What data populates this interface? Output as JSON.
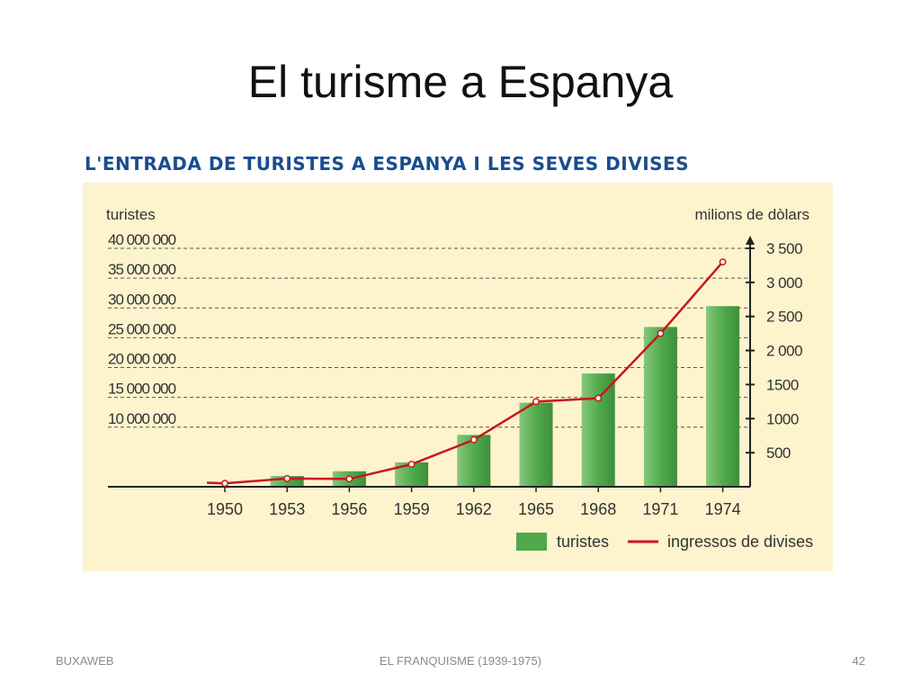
{
  "slide": {
    "title": "El turisme a Espanya",
    "footer_left": "BUXAWEB",
    "footer_center": "EL FRANQUISME (1939-1975)",
    "footer_right": "42"
  },
  "chart_data": {
    "type": "bar",
    "title": "L'ENTRADA DE TURISTES A ESPANYA I LES SEVES DIVISES",
    "ylabel_left": "turistes",
    "ylabel_right": "milions de dòlars",
    "categories": [
      "1950",
      "1953",
      "1956",
      "1959",
      "1962",
      "1965",
      "1968",
      "1971",
      "1974"
    ],
    "left_ticks": [
      "10 000 000",
      "15 000 000",
      "20 000 000",
      "25 000 000",
      "30 000 000",
      "35 000 000",
      "40 000 000"
    ],
    "right_ticks": [
      "500",
      "1000",
      "1500",
      "2 000",
      "2 500",
      "3 000",
      "3 500"
    ],
    "ylim_left": [
      0,
      40000000
    ],
    "ylim_right": [
      0,
      3500
    ],
    "series": [
      {
        "name": "turistes",
        "kind": "bar",
        "axis": "left",
        "values": [
          0,
          1800000,
          2600000,
          4100000,
          8700000,
          14100000,
          19000000,
          26800000,
          30300000
        ]
      },
      {
        "name": "ingressos de divises",
        "kind": "line",
        "axis": "right",
        "values": [
          50,
          120,
          115,
          330,
          690,
          1250,
          1300,
          2250,
          3300
        ]
      }
    ],
    "colors": {
      "bar": "#4fa84a",
      "bar_light": "#86c77a",
      "line": "#c8161d",
      "background": "#fdf3cd",
      "grid": "#555555"
    },
    "grid": "dashed-horizontal",
    "legend_position": "bottom-right"
  }
}
